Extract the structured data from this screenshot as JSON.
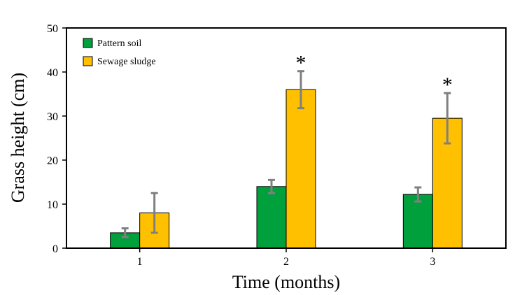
{
  "chart_data": {
    "type": "bar",
    "title": "",
    "xlabel": "Time (months)",
    "ylabel": "Grass height (cm)",
    "categories": [
      "1",
      "2",
      "3"
    ],
    "ylim": [
      0,
      50
    ],
    "yticks": [
      0,
      10,
      20,
      30,
      40,
      50
    ],
    "grid": false,
    "legend_position": "top-left",
    "series": [
      {
        "name": "Pattern soil",
        "color": "#00a03c",
        "values": [
          3.5,
          14.0,
          12.2
        ],
        "errors": [
          1.0,
          1.5,
          1.6
        ]
      },
      {
        "name": "Sewage sludge",
        "color": "#ffc000",
        "values": [
          8.0,
          36.0,
          29.5
        ],
        "errors": [
          4.5,
          4.2,
          5.7
        ]
      }
    ],
    "significance_marker": "*",
    "significant_categories": [
      "2",
      "3"
    ],
    "error_bar_color": "#808080"
  }
}
